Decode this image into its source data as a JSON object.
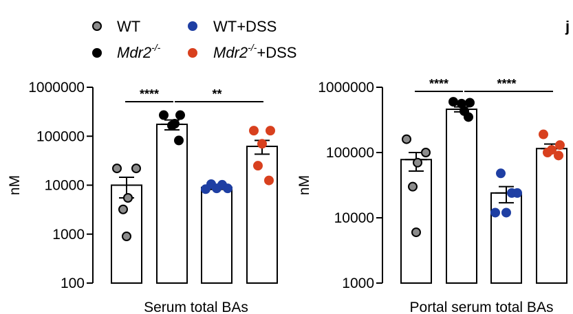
{
  "colors": {
    "WT": "#8c8c8c",
    "Mdr2": "#000000",
    "WT_DSS": "#1f3fa3",
    "Mdr2_DSS": "#d8401e"
  },
  "legend": {
    "wt": "WT",
    "wt_dss": "WT+DSS",
    "mdr2": "Mdr2",
    "mdr2_sup": "-/-",
    "mdr2_dss": "Mdr2",
    "mdr2_dss_sup": "-/-",
    "mdr2_dss_suffix": "+DSS"
  },
  "panel_letter": "j",
  "chart_data": [
    {
      "type": "bar",
      "scale": "log",
      "xlabel": "Serum total BAs",
      "ylabel": "nM",
      "ylim": [
        100,
        1000000
      ],
      "yticks": [
        100,
        1000,
        10000,
        100000,
        1000000
      ],
      "ytick_labels": [
        "100",
        "1000",
        "10000",
        "100000",
        "1000000"
      ],
      "groups": [
        "WT",
        "Mdr2-/-",
        "WT+DSS",
        "Mdr2-/-+DSS"
      ],
      "color_keys": [
        "WT",
        "Mdr2",
        "WT_DSS",
        "Mdr2_DSS"
      ],
      "means": [
        10000,
        175000,
        9000,
        62000
      ],
      "sem_low": [
        5500,
        135000,
        8200,
        43000
      ],
      "sem_high": [
        14500,
        215000,
        9800,
        82000
      ],
      "points": [
        [
          22000,
          22000,
          5500,
          3200,
          900
        ],
        [
          270000,
          270000,
          165000,
          180000,
          82000
        ],
        [
          10500,
          10200,
          8600,
          8300,
          8600
        ],
        [
          130000,
          130000,
          70000,
          25000,
          12500
        ]
      ],
      "significance": [
        {
          "from": 0,
          "to": 1,
          "label": "****"
        },
        {
          "from": 1,
          "to": 3,
          "label": "**"
        }
      ]
    },
    {
      "type": "bar",
      "scale": "log",
      "xlabel": "Portal serum total BAs",
      "ylabel": "nM",
      "ylim": [
        1000,
        1000000
      ],
      "yticks": [
        1000,
        10000,
        100000,
        1000000
      ],
      "ytick_labels": [
        "1000",
        "10000",
        "100000",
        "1000000"
      ],
      "groups": [
        "WT",
        "Mdr2-/-",
        "WT+DSS",
        "Mdr2-/-+DSS"
      ],
      "color_keys": [
        "WT",
        "Mdr2",
        "WT_DSS",
        "Mdr2_DSS"
      ],
      "means": [
        78000,
        460000,
        24000,
        115000
      ],
      "sem_low": [
        52000,
        420000,
        17000,
        100000
      ],
      "sem_high": [
        100000,
        500000,
        30000,
        135000
      ],
      "points": [
        [
          160000,
          100000,
          70000,
          30000,
          6000
        ],
        [
          600000,
          580000,
          560000,
          430000,
          350000
        ],
        [
          48000,
          24000,
          24000,
          12000,
          12000
        ],
        [
          190000,
          130000,
          110000,
          100000,
          90000
        ]
      ],
      "significance": [
        {
          "from": 0,
          "to": 1,
          "label": "****"
        },
        {
          "from": 1,
          "to": 3,
          "label": "****"
        }
      ]
    }
  ]
}
